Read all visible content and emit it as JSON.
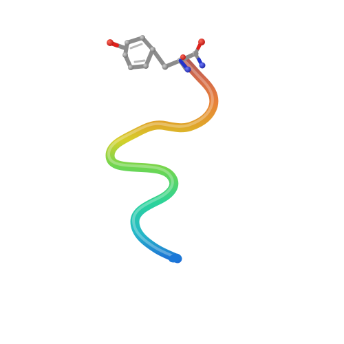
{
  "scene": {
    "background": "#ffffff",
    "subject": "peptide-backbone-cartoon",
    "representation": "tube",
    "coloring": "rainbow",
    "gradient_colors": [
      "#1e6fd6",
      "#2ad1a0",
      "#5fd45a",
      "#d6cf2a",
      "#e8962a",
      "#e8733a",
      "#c0604a"
    ],
    "ligand": {
      "representation": "ball-and-stick",
      "element_colors": {
        "carbon": "#8c8c8c",
        "oxygen": "#e0201b",
        "nitrogen": "#2233cc"
      }
    }
  }
}
